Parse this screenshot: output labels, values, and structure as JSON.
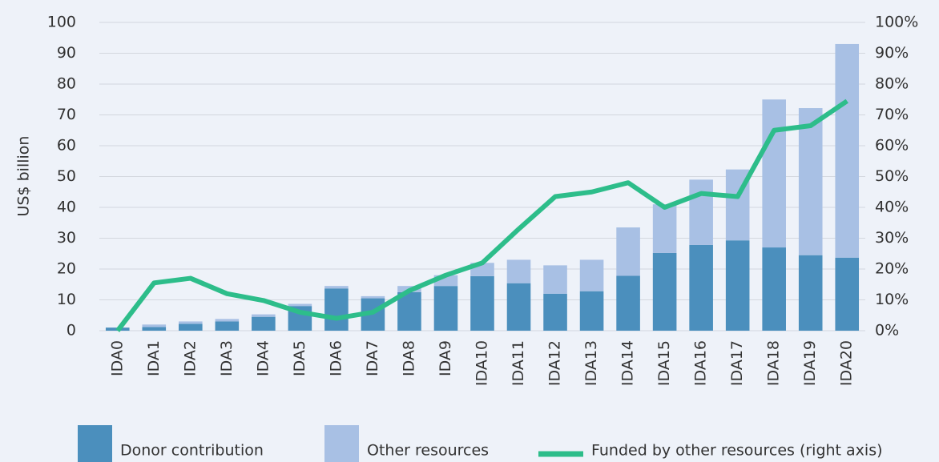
{
  "chart_data": {
    "type": "bar",
    "stacked": true,
    "y_axis_label": "US$ billion",
    "categories": [
      "IDA0",
      "IDA1",
      "IDA2",
      "IDA3",
      "IDA4",
      "IDA5",
      "IDA6",
      "IDA7",
      "IDA8",
      "IDA9",
      "IDA10",
      "IDA11",
      "IDA12",
      "IDA13",
      "IDA14",
      "IDA15",
      "IDA16",
      "IDA17",
      "IDA18",
      "IDA19",
      "IDA20"
    ],
    "series": [
      {
        "name": "Donor contribution",
        "type": "bar",
        "color": "#4b8fbd",
        "values": [
          1,
          1.2,
          2.2,
          3,
          4.5,
          8,
          13.7,
          10.5,
          12.5,
          14.5,
          17.7,
          15.4,
          12,
          12.8,
          17.8,
          25.2,
          27.8,
          29.3,
          27,
          24.5,
          23.7
        ]
      },
      {
        "name": "Other resources",
        "type": "bar",
        "color": "#a8c0e4",
        "values": [
          0,
          0.8,
          0.8,
          0.8,
          0.8,
          0.7,
          0.8,
          0.7,
          2,
          3.5,
          4.3,
          7.6,
          9.2,
          10.2,
          15.7,
          15.8,
          21.2,
          23,
          48,
          47.7,
          69.3
        ]
      },
      {
        "name": "Funded by other resources (right axis)",
        "type": "line",
        "axis": "y2",
        "color": "#2dbd8a",
        "values": [
          0,
          15.5,
          17,
          12,
          9.8,
          6,
          4,
          6,
          13,
          18,
          22,
          33,
          43.5,
          45,
          48,
          40,
          44.5,
          43.5,
          65,
          66.5,
          74.5
        ]
      }
    ],
    "ylim": [
      0,
      100
    ],
    "yticks": [
      0,
      10,
      20,
      30,
      40,
      50,
      60,
      70,
      80,
      90,
      100
    ],
    "y2lim": [
      0,
      100
    ],
    "y2ticks": [
      {
        "value": 0,
        "label": "0%"
      },
      {
        "value": 10,
        "label": "10%"
      },
      {
        "value": 20,
        "label": "20%"
      },
      {
        "value": 30,
        "label": "30%"
      },
      {
        "value": 40,
        "label": "40%"
      },
      {
        "value": 50,
        "label": "50%"
      },
      {
        "value": 60,
        "label": "60%"
      },
      {
        "value": 70,
        "label": "70%"
      },
      {
        "value": 80,
        "label": "80%"
      },
      {
        "value": 90,
        "label": "90%"
      },
      {
        "value": 100,
        "label": "100%"
      }
    ],
    "grid": true,
    "legend": "bottom"
  }
}
